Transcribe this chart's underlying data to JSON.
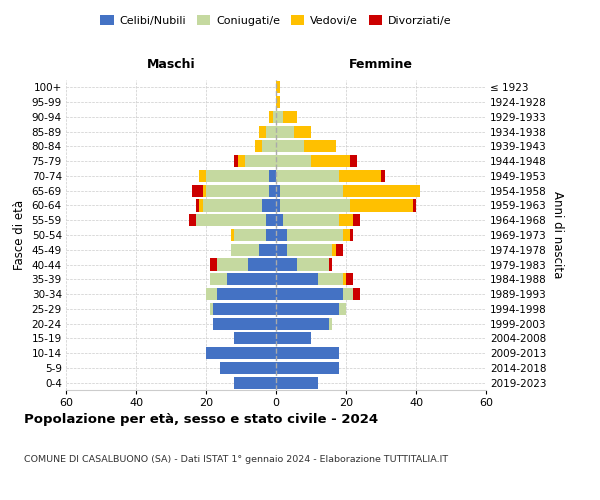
{
  "age_groups": [
    "0-4",
    "5-9",
    "10-14",
    "15-19",
    "20-24",
    "25-29",
    "30-34",
    "35-39",
    "40-44",
    "45-49",
    "50-54",
    "55-59",
    "60-64",
    "65-69",
    "70-74",
    "75-79",
    "80-84",
    "85-89",
    "90-94",
    "95-99",
    "100+"
  ],
  "birth_years": [
    "2019-2023",
    "2014-2018",
    "2009-2013",
    "2004-2008",
    "1999-2003",
    "1994-1998",
    "1989-1993",
    "1984-1988",
    "1979-1983",
    "1974-1978",
    "1969-1973",
    "1964-1968",
    "1959-1963",
    "1954-1958",
    "1949-1953",
    "1944-1948",
    "1939-1943",
    "1934-1938",
    "1929-1933",
    "1924-1928",
    "≤ 1923"
  ],
  "colors": {
    "celibi": "#4472C4",
    "coniugati": "#c5d9a0",
    "vedovi": "#ffc000",
    "divorziati": "#cc0000"
  },
  "males": {
    "celibi": [
      12,
      16,
      20,
      12,
      18,
      18,
      17,
      14,
      8,
      5,
      3,
      3,
      4,
      2,
      2,
      0,
      0,
      0,
      0,
      0,
      0
    ],
    "coniugati": [
      0,
      0,
      0,
      0,
      0,
      1,
      3,
      5,
      9,
      8,
      9,
      20,
      17,
      18,
      18,
      9,
      4,
      3,
      1,
      0,
      0
    ],
    "vedovi": [
      0,
      0,
      0,
      0,
      0,
      0,
      0,
      0,
      0,
      0,
      1,
      0,
      1,
      1,
      2,
      2,
      2,
      2,
      1,
      0,
      0
    ],
    "divorziati": [
      0,
      0,
      0,
      0,
      0,
      0,
      0,
      0,
      2,
      0,
      0,
      2,
      1,
      3,
      0,
      1,
      0,
      0,
      0,
      0,
      0
    ]
  },
  "females": {
    "nubili": [
      12,
      18,
      18,
      10,
      15,
      18,
      19,
      12,
      6,
      3,
      3,
      2,
      1,
      1,
      0,
      0,
      0,
      0,
      0,
      0,
      0
    ],
    "coniugate": [
      0,
      0,
      0,
      0,
      1,
      2,
      3,
      7,
      9,
      13,
      16,
      16,
      20,
      18,
      18,
      10,
      8,
      5,
      2,
      0,
      0
    ],
    "vedove": [
      0,
      0,
      0,
      0,
      0,
      0,
      0,
      1,
      0,
      1,
      2,
      4,
      18,
      22,
      12,
      11,
      9,
      5,
      4,
      1,
      1
    ],
    "divorziate": [
      0,
      0,
      0,
      0,
      0,
      0,
      2,
      2,
      1,
      2,
      1,
      2,
      1,
      0,
      1,
      2,
      0,
      0,
      0,
      0,
      0
    ]
  },
  "xlim": 60,
  "xticks": [
    -60,
    -40,
    -20,
    0,
    20,
    40,
    60
  ],
  "xticklabels": [
    "60",
    "40",
    "20",
    "0",
    "20",
    "40",
    "60"
  ],
  "title": "Popolazione per età, sesso e stato civile - 2024",
  "subtitle": "COMUNE DI CASALBUONO (SA) - Dati ISTAT 1° gennaio 2024 - Elaborazione TUTTITALIA.IT",
  "ylabel_left": "Fasce di età",
  "ylabel_right": "Anni di nascita",
  "bg_color": "#ffffff"
}
